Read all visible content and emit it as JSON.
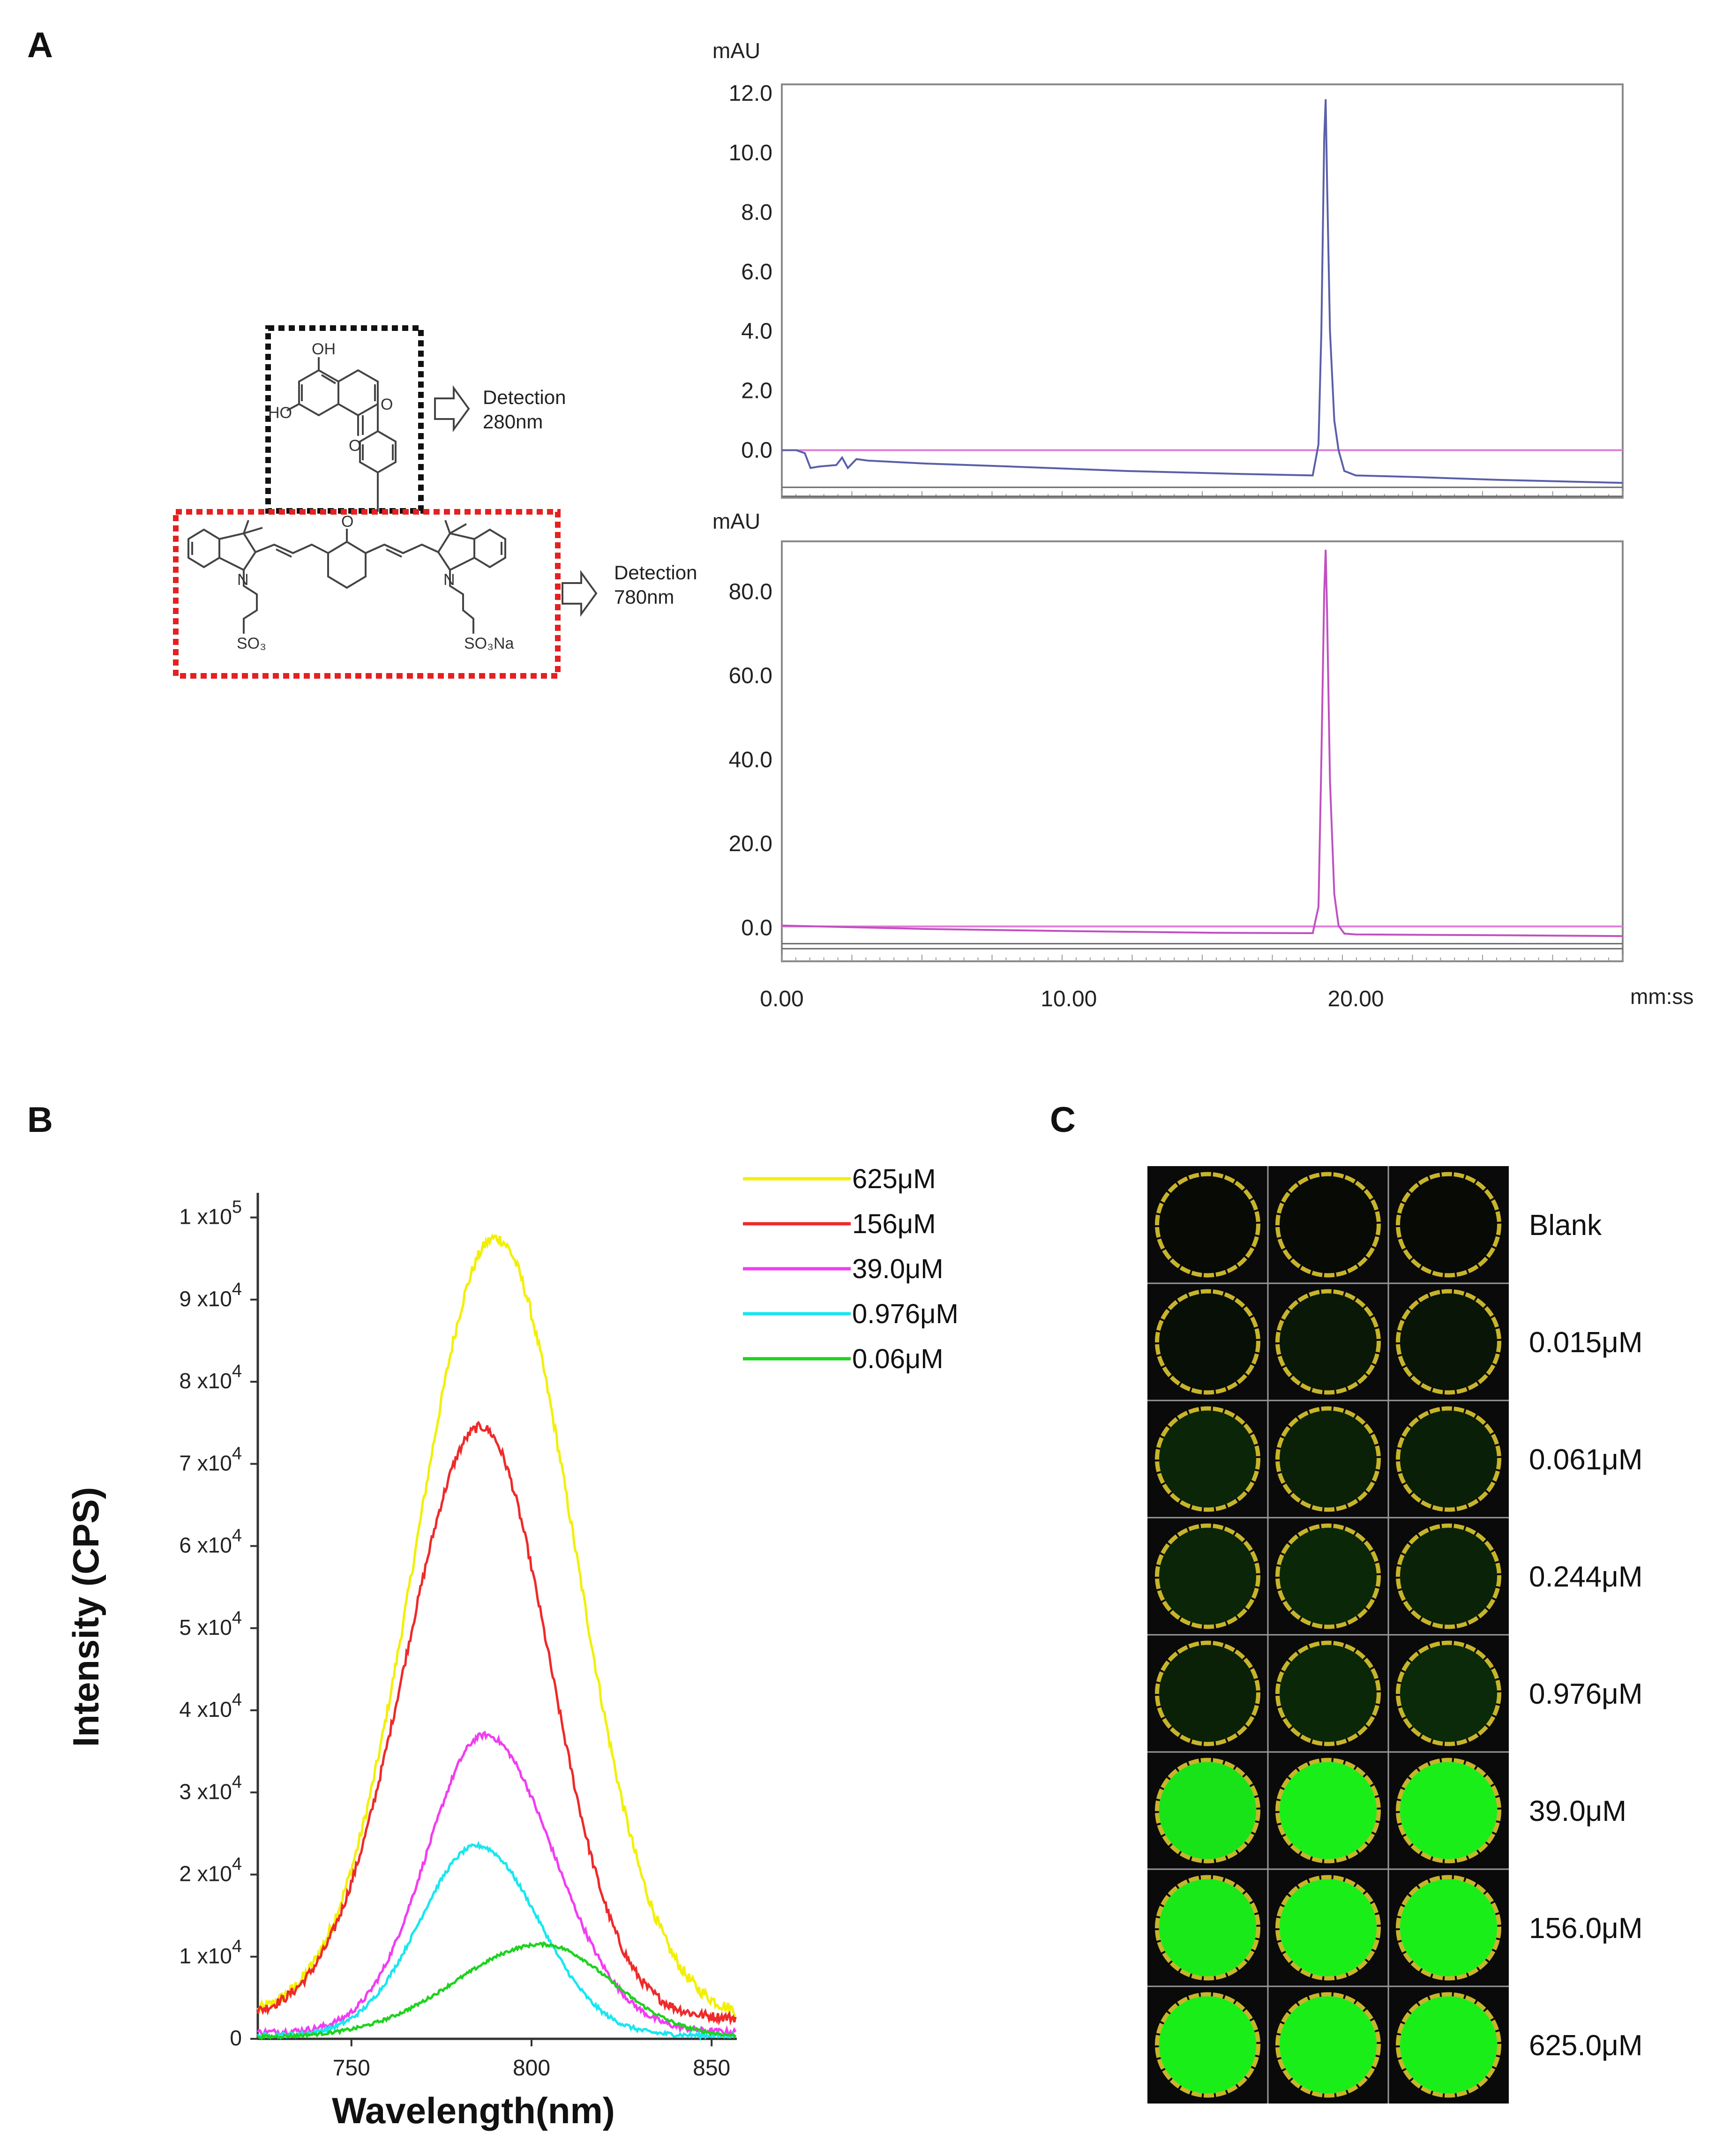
{
  "panels": {
    "a": "A",
    "b": "B",
    "c": "C"
  },
  "structure": {
    "atoms": {
      "oh_top": "OH",
      "ho_left": "HO",
      "o_ring": "O",
      "o_ketone": "O",
      "o_center": "O",
      "n_plus": "N",
      "n_right": "N",
      "so3_left": "SO₃",
      "so3na_right": "SO₃Na"
    },
    "detection_top": [
      "Detection",
      "280nm"
    ],
    "detection_bottom": [
      "Detection",
      "780nm"
    ],
    "box_colors": {
      "top": "#111111",
      "bottom": "#e52020"
    }
  },
  "chart_data": [
    {
      "id": "hplc-280",
      "type": "line",
      "ylabel": "mAU",
      "xlabel": "mm:ss",
      "xlim": [
        0,
        29.3
      ],
      "ylim": [
        -1.6,
        12.3
      ],
      "yticks": [
        "12.0",
        "10.0",
        "8.0",
        "6.0",
        "4.0",
        "2.0",
        "0.0"
      ],
      "series": [
        {
          "color": "#5a5fa8",
          "x": [
            0,
            0.5,
            0.8,
            1.0,
            1.3,
            1.9,
            2.1,
            2.3,
            2.6,
            3.0,
            5,
            8,
            12,
            16,
            18.5,
            18.7,
            18.8,
            18.9,
            18.95,
            19.0,
            19.1,
            19.25,
            19.4,
            19.6,
            20,
            22,
            25,
            29.3
          ],
          "y": [
            0.0,
            0.0,
            -0.1,
            -0.6,
            -0.55,
            -0.5,
            -0.25,
            -0.6,
            -0.3,
            -0.35,
            -0.45,
            -0.55,
            -0.7,
            -0.8,
            -0.85,
            0.2,
            4.0,
            10.5,
            11.8,
            9.0,
            4.0,
            1.0,
            0.0,
            -0.7,
            -0.85,
            -0.9,
            -1.0,
            -1.1
          ]
        },
        {
          "color": "#e07ad8",
          "x": [
            0,
            29.3
          ],
          "y": [
            0.0,
            0.0
          ]
        }
      ],
      "baselines": [
        -1.25,
        -1.55
      ]
    },
    {
      "id": "hplc-780",
      "type": "line",
      "ylabel": "mAU",
      "xlabel": "mm:ss",
      "xlim": [
        0,
        29.3
      ],
      "ylim": [
        -8,
        92
      ],
      "yticks": [
        "80.0",
        "60.0",
        "40.0",
        "20.0",
        "0.0"
      ],
      "xticks": [
        "0.00",
        "10.00",
        "20.00"
      ],
      "xtick_values": [
        0,
        10,
        20
      ],
      "series": [
        {
          "color": "#c050c0",
          "x": [
            0,
            5,
            10,
            15,
            18.5,
            18.7,
            18.8,
            18.9,
            18.95,
            19.0,
            19.1,
            19.25,
            19.4,
            19.6,
            20,
            25,
            29.3
          ],
          "y": [
            0.5,
            -0.3,
            -0.8,
            -1.2,
            -1.3,
            5,
            40,
            80,
            90,
            75,
            35,
            8,
            0.5,
            -1.4,
            -1.6,
            -1.8,
            -2.0
          ]
        },
        {
          "color": "#e07ad8",
          "x": [
            0,
            29.3
          ],
          "y": [
            0.3,
            0.3
          ]
        }
      ],
      "baselines": [
        -3.8,
        -5.0
      ]
    },
    {
      "id": "fluorescence-spectra",
      "type": "line",
      "xlabel": "Wavelength(nm)",
      "ylabel": "Intensity (CPS)",
      "xlim": [
        724,
        857
      ],
      "ylim": [
        0,
        103000
      ],
      "xticks": [
        "750",
        "800",
        "850"
      ],
      "xtick_values": [
        750,
        800,
        850
      ],
      "yticks": [
        {
          "value": 100000,
          "mant": "1 x10",
          "exp": "5"
        },
        {
          "value": 90000,
          "mant": "9 x10",
          "exp": "4"
        },
        {
          "value": 80000,
          "mant": "8 x10",
          "exp": "4"
        },
        {
          "value": 70000,
          "mant": "7 x10",
          "exp": "4"
        },
        {
          "value": 60000,
          "mant": "6 x10",
          "exp": "4"
        },
        {
          "value": 50000,
          "mant": "5 x10",
          "exp": "4"
        },
        {
          "value": 40000,
          "mant": "4 x10",
          "exp": "4"
        },
        {
          "value": 30000,
          "mant": "3 x10",
          "exp": "4"
        },
        {
          "value": 20000,
          "mant": "2 x10",
          "exp": "4"
        },
        {
          "value": 10000,
          "mant": "1 x10",
          "exp": "4"
        },
        {
          "value": 0,
          "mant": "0",
          "exp": ""
        }
      ],
      "legend_position": "top-right",
      "series": [
        {
          "name": "625μM",
          "color": "#f2f000",
          "peak_x": 790,
          "peak_y": 97500,
          "base_y": 2500,
          "sigma_left": 22,
          "sigma_right": 22
        },
        {
          "name": "156μM",
          "color": "#ee2a2a",
          "peak_x": 786,
          "peak_y": 74500,
          "base_y": 2500,
          "sigma_left": 21,
          "sigma_right": 19
        },
        {
          "name": "39.0μM",
          "color": "#f23cf2",
          "peak_x": 787,
          "peak_y": 37000,
          "base_y": 800,
          "sigma_left": 16,
          "sigma_right": 19
        },
        {
          "name": "0.976μM",
          "color": "#19e6f0",
          "peak_x": 785,
          "peak_y": 23500,
          "base_y": 400,
          "sigma_left": 16,
          "sigma_right": 17
        },
        {
          "name": "0.06μM",
          "color": "#1ed21e",
          "peak_x": 803,
          "peak_y": 11500,
          "base_y": 200,
          "sigma_left": 24,
          "sigma_right": 19
        }
      ]
    }
  ],
  "wells": {
    "rows": [
      {
        "label": "Blank",
        "brightness": [
          0.0,
          0.0,
          0.0
        ]
      },
      {
        "label": "0.015μM",
        "brightness": [
          0.02,
          0.06,
          0.05
        ]
      },
      {
        "label": "0.061μM",
        "brightness": [
          0.12,
          0.1,
          0.09
        ]
      },
      {
        "label": "0.244μM",
        "brightness": [
          0.12,
          0.13,
          0.11
        ]
      },
      {
        "label": "0.976μM",
        "brightness": [
          0.1,
          0.13,
          0.14
        ]
      },
      {
        "label": "39.0μM",
        "brightness": [
          0.95,
          1.0,
          1.0
        ]
      },
      {
        "label": "156.0μM",
        "brightness": [
          0.98,
          1.0,
          1.0
        ]
      },
      {
        "label": "625.0μM",
        "brightness": [
          1.0,
          1.0,
          1.0
        ]
      }
    ],
    "ring_color": "#c8b42a",
    "well_color": "#19ee19"
  }
}
